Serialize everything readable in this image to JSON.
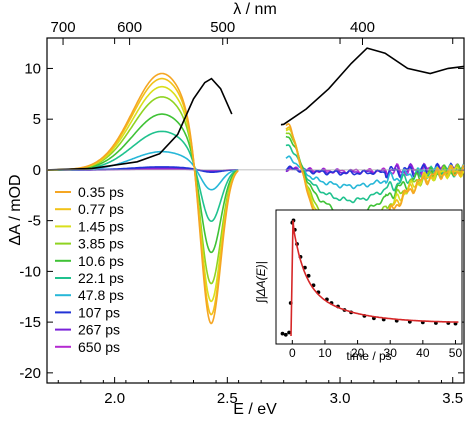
{
  "chart_data": [
    {
      "type": "line",
      "xlabel": "E / eV",
      "ylabel": "ΔA / mOD",
      "top_xlabel": "λ / nm",
      "xlim": [
        1.7,
        3.55
      ],
      "ylim": [
        -21,
        13
      ],
      "x_ticks": [
        "2.0",
        "2.5",
        "3.0",
        "3.5"
      ],
      "x_tick_values": [
        2.0,
        2.5,
        3.0,
        3.5
      ],
      "y_ticks": [
        "-20",
        "-15",
        "-10",
        "-5",
        "0",
        "5",
        "10"
      ],
      "y_tick_values": [
        -20,
        -15,
        -10,
        -5,
        0,
        5,
        10
      ],
      "top_ticks": [
        "700",
        "600",
        "500",
        "400"
      ],
      "top_tick_values_nm": [
        700,
        600,
        500,
        400
      ],
      "gap_ev": [
        2.55,
        2.76
      ],
      "legend_position": "lower-left",
      "steady_state": {
        "color": "#000000",
        "points": [
          [
            1.7,
            0.0
          ],
          [
            1.9,
            0.15
          ],
          [
            2.1,
            0.8
          ],
          [
            2.2,
            1.6
          ],
          [
            2.28,
            3.5
          ],
          [
            2.35,
            7.0
          ],
          [
            2.4,
            8.6
          ],
          [
            2.43,
            9.0
          ],
          [
            2.47,
            8.0
          ],
          [
            2.52,
            5.5
          ],
          [
            2.58,
            4.6
          ],
          [
            2.65,
            4.2
          ],
          [
            2.75,
            4.5
          ],
          [
            2.85,
            6.0
          ],
          [
            2.95,
            8.0
          ],
          [
            3.05,
            10.5
          ],
          [
            3.12,
            12.0
          ],
          [
            3.2,
            11.5
          ],
          [
            3.3,
            10.0
          ],
          [
            3.4,
            9.5
          ],
          [
            3.48,
            10.0
          ],
          [
            3.55,
            10.2
          ]
        ]
      },
      "series": [
        {
          "name": "0.35 ps",
          "color": "#f5a623",
          "peak": 9.5,
          "bleach": -17.5,
          "sw": 6.0,
          "dip": -7.5
        },
        {
          "name": "0.77 ps",
          "color": "#f2c218",
          "peak": 9.0,
          "bleach": -16.5,
          "sw": 5.7,
          "dip": -7.2
        },
        {
          "name": "1.45 ps",
          "color": "#d9df1c",
          "peak": 8.2,
          "bleach": -15.0,
          "sw": 5.5,
          "dip": -6.6
        },
        {
          "name": "3.85 ps",
          "color": "#8fd321",
          "peak": 7.2,
          "bleach": -13.0,
          "sw": 5.0,
          "dip": -5.8
        },
        {
          "name": "10.6 ps",
          "color": "#3fc236",
          "peak": 5.5,
          "bleach": -9.5,
          "sw": 4.2,
          "dip": -4.3
        },
        {
          "name": "22.1 ps",
          "color": "#20c28e",
          "peak": 3.8,
          "bleach": -6.0,
          "sw": 3.0,
          "dip": -3.0
        },
        {
          "name": "47.8 ps",
          "color": "#27b7d8",
          "peak": 1.8,
          "bleach": -2.4,
          "sw": 1.5,
          "dip": -1.6
        },
        {
          "name": "107 ps",
          "color": "#2233d6",
          "peak": 0.3,
          "bleach": -0.3,
          "sw": 0.2,
          "dip": -0.3
        },
        {
          "name": "267 ps",
          "color": "#7a22d9",
          "peak": 0.2,
          "bleach": -0.2,
          "sw": 0.15,
          "dip": -0.2
        },
        {
          "name": "650 ps",
          "color": "#b42ad1",
          "peak": 0.1,
          "bleach": -0.1,
          "sw": 0.1,
          "dip": -0.1
        }
      ]
    },
    {
      "type": "scatter",
      "xlabel": "time / ps",
      "ylabel": "∫|ΔA(E)|",
      "xlim": [
        -5,
        52
      ],
      "x_ticks": [
        "0",
        "10",
        "20",
        "30",
        "40",
        "50"
      ],
      "x_tick_values": [
        0,
        10,
        20,
        30,
        40,
        50
      ],
      "fit_color": "#d62728",
      "points": [
        [
          -3,
          0.02
        ],
        [
          -2,
          0.01
        ],
        [
          -1,
          0.03
        ],
        [
          -0.5,
          0.28
        ],
        [
          0,
          0.96
        ],
        [
          0.35,
          0.98
        ],
        [
          0.77,
          0.9
        ],
        [
          1.45,
          0.78
        ],
        [
          2.5,
          0.67
        ],
        [
          3.85,
          0.58
        ],
        [
          5,
          0.51
        ],
        [
          6.5,
          0.43
        ],
        [
          8,
          0.37
        ],
        [
          10.6,
          0.31
        ],
        [
          12,
          0.28
        ],
        [
          14,
          0.25
        ],
        [
          16,
          0.22
        ],
        [
          18,
          0.2
        ],
        [
          22.1,
          0.17
        ],
        [
          25,
          0.15
        ],
        [
          28,
          0.14
        ],
        [
          32,
          0.13
        ],
        [
          36,
          0.12
        ],
        [
          40,
          0.115
        ],
        [
          44,
          0.11
        ],
        [
          47.8,
          0.11
        ],
        [
          50,
          0.105
        ]
      ]
    }
  ]
}
